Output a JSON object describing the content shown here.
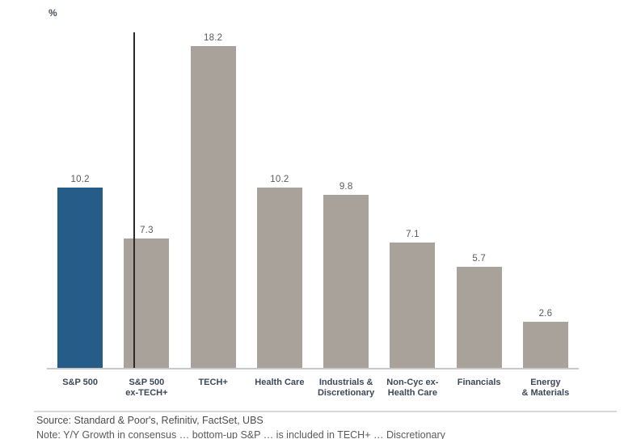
{
  "chart_data": {
    "type": "bar",
    "title": "",
    "unit_label": "%",
    "categories": [
      "S&P 500",
      "S&P 500\nex-TECH+",
      "TECH+",
      "Health Care",
      "Industrials &\nDiscretionary",
      "Non-Cyc ex-\nHealth Care",
      "Financials",
      "Energy\n& Materials"
    ],
    "values": [
      10.2,
      7.3,
      18.2,
      10.2,
      9.8,
      7.1,
      5.7,
      2.6
    ],
    "value_labels": [
      "10.2",
      "7.3",
      "18.2",
      "10.2",
      "9.8",
      "7.1",
      "5.7",
      "2.6"
    ],
    "highlight_index": 0,
    "highlight_color": "#265c88",
    "default_color": "#a9a29b",
    "separator_after_index": 1,
    "xlabel": "",
    "ylabel": "%",
    "ylim": [
      0,
      19.5
    ],
    "grid": false,
    "legend": null,
    "value_labels_shown": true
  },
  "footer": {
    "source": "Source: Standard & Poor's, Refinitiv, FactSet, UBS",
    "note_clipped": "Note: Y/Y Growth in consensus … bottom-up S&P … is included in TECH+ … Discretionary"
  },
  "colors": {
    "bar_highlight": "#265c88",
    "bar_default": "#a9a29b",
    "axis_line": "#c9c9c9",
    "separator_line": "#2a2a2a",
    "category_label": "#3c4858",
    "value_label": "#595959",
    "source_text": "#4d4d4d",
    "divider": "#d8d8d8",
    "background": "#ffffff"
  }
}
